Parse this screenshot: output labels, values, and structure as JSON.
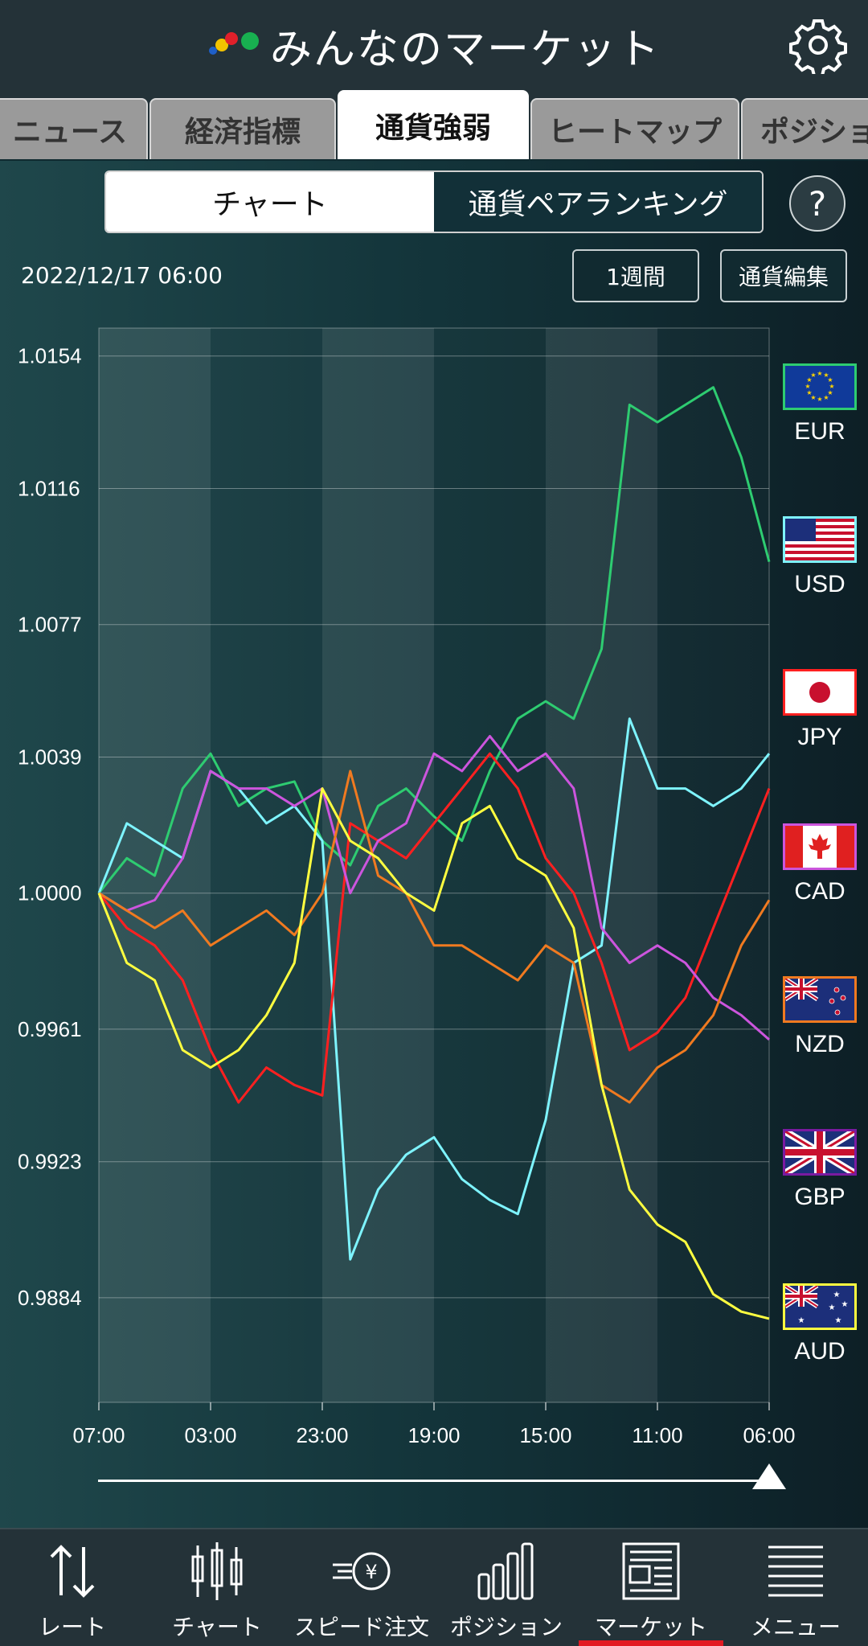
{
  "header": {
    "title": "みんなのマーケット",
    "settings_icon": "gear-icon"
  },
  "tabs": [
    {
      "label": "ニュース",
      "active": false
    },
    {
      "label": "経済指標",
      "active": false
    },
    {
      "label": "通貨強弱",
      "active": true
    },
    {
      "label": "ヒートマップ",
      "active": false
    },
    {
      "label": "ポジション",
      "active": false
    }
  ],
  "segment": {
    "chart": "チャート",
    "ranking": "通貨ペアランキング",
    "active": "chart"
  },
  "help": {
    "label": "?"
  },
  "info": {
    "date": "2022/12/17 06:00"
  },
  "buttons": {
    "period": "1週間",
    "edit": "通貨編集"
  },
  "legend": [
    {
      "code": "EUR",
      "color": "#2ecc71"
    },
    {
      "code": "USD",
      "color": "#7ef4ff"
    },
    {
      "code": "JPY",
      "color": "#ff2020"
    },
    {
      "code": "CAD",
      "color": "#cc55dd"
    },
    {
      "code": "NZD",
      "color": "#f07a20"
    },
    {
      "code": "GBP",
      "color": "#7a1aa0"
    },
    {
      "code": "AUD",
      "color": "#ffff40"
    }
  ],
  "chart_data": {
    "type": "line",
    "yticks": [
      "1.0154",
      "1.0116",
      "1.0077",
      "1.0039",
      "1.0000",
      "0.9961",
      "0.9923",
      "0.9884"
    ],
    "ylim": [
      0.9854,
      1.0162
    ],
    "xticks": [
      "07:00",
      "03:00",
      "23:00",
      "19:00",
      "15:00",
      "11:00",
      "06:00"
    ],
    "x": [
      0,
      1,
      2,
      3,
      4,
      5,
      6,
      7,
      8,
      9,
      10,
      11,
      12,
      13,
      14,
      15,
      16,
      17,
      18,
      19,
      20,
      21,
      22,
      23,
      24
    ],
    "series": [
      {
        "name": "EUR",
        "color": "#2ecc71",
        "values": [
          1.0,
          1.001,
          1.0005,
          1.003,
          1.004,
          1.0025,
          1.003,
          1.0032,
          1.0015,
          1.0008,
          1.0025,
          1.003,
          1.0022,
          1.0015,
          1.0035,
          1.005,
          1.0055,
          1.005,
          1.007,
          1.014,
          1.0135,
          1.014,
          1.0145,
          1.0125,
          1.0095
        ]
      },
      {
        "name": "USD",
        "color": "#7ef4ff",
        "values": [
          1.0,
          1.002,
          1.0015,
          1.001,
          1.0035,
          1.003,
          1.002,
          1.0025,
          1.0015,
          0.9895,
          0.9915,
          0.9925,
          0.993,
          0.9918,
          0.9912,
          0.9908,
          0.9935,
          0.998,
          0.9985,
          1.005,
          1.003,
          1.003,
          1.0025,
          1.003,
          1.004
        ]
      },
      {
        "name": "JPY",
        "color": "#ff2020",
        "values": [
          1.0,
          0.999,
          0.9985,
          0.9975,
          0.9955,
          0.994,
          0.995,
          0.9945,
          0.9942,
          1.002,
          1.0015,
          1.001,
          1.002,
          1.003,
          1.004,
          1.003,
          1.001,
          1.0,
          0.998,
          0.9955,
          0.996,
          0.997,
          0.999,
          1.001,
          1.003
        ]
      },
      {
        "name": "CAD",
        "color": "#cc55dd",
        "values": [
          1.0,
          0.9995,
          0.9998,
          1.001,
          1.0035,
          1.003,
          1.003,
          1.0025,
          1.003,
          1.0,
          1.0015,
          1.002,
          1.004,
          1.0035,
          1.0045,
          1.0035,
          1.004,
          1.003,
          0.999,
          0.998,
          0.9985,
          0.998,
          0.997,
          0.9965,
          0.9958
        ]
      },
      {
        "name": "NZD",
        "color": "#f07a20",
        "values": [
          1.0,
          0.9995,
          0.999,
          0.9995,
          0.9985,
          0.999,
          0.9995,
          0.9988,
          1.0,
          1.0035,
          1.0005,
          1.0,
          0.9985,
          0.9985,
          0.998,
          0.9975,
          0.9985,
          0.998,
          0.9945,
          0.994,
          0.995,
          0.9955,
          0.9965,
          0.9985,
          0.9998
        ]
      },
      {
        "name": "AUD",
        "color": "#ffff40",
        "values": [
          1.0,
          0.998,
          0.9975,
          0.9955,
          0.995,
          0.9955,
          0.9965,
          0.998,
          1.003,
          1.0015,
          1.001,
          1.0,
          0.9995,
          1.002,
          1.0025,
          1.001,
          1.0005,
          0.999,
          0.9945,
          0.9915,
          0.9905,
          0.99,
          0.9885,
          0.988,
          0.9878
        ]
      }
    ]
  },
  "nav": [
    {
      "label": "レート",
      "icon": "rate-arrows-icon",
      "active": false
    },
    {
      "label": "チャート",
      "icon": "candlestick-icon",
      "active": false
    },
    {
      "label": "スピード注文",
      "icon": "speed-order-icon",
      "active": false
    },
    {
      "label": "ポジション",
      "icon": "bar-chart-icon",
      "active": false
    },
    {
      "label": "マーケット",
      "icon": "newspaper-icon",
      "active": true
    },
    {
      "label": "メニュー",
      "icon": "menu-list-icon",
      "active": false
    }
  ]
}
